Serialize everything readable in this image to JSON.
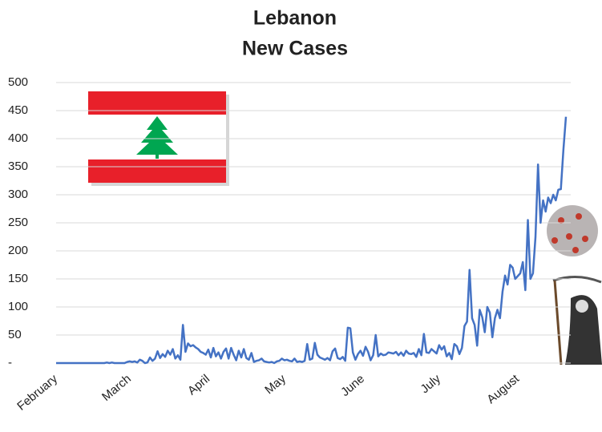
{
  "chart_data": {
    "type": "line",
    "title": "Lebanon",
    "subtitle": "New Cases",
    "categories": [
      "February",
      null,
      null,
      null,
      null,
      null,
      null,
      null,
      null,
      null,
      null,
      null,
      null,
      null,
      null,
      null,
      null,
      null,
      null,
      null,
      null,
      null,
      null,
      null,
      null,
      null,
      null,
      null,
      null,
      "March",
      null,
      null,
      null,
      null,
      null,
      null,
      null,
      null,
      null,
      null,
      null,
      null,
      null,
      null,
      null,
      null,
      null,
      null,
      null,
      null,
      null,
      null,
      null,
      null,
      null,
      null,
      null,
      null,
      null,
      null,
      "April",
      null,
      null,
      null,
      null,
      null,
      null,
      null,
      null,
      null,
      null,
      null,
      null,
      null,
      null,
      null,
      null,
      null,
      null,
      null,
      null,
      null,
      null,
      null,
      null,
      null,
      null,
      null,
      null,
      null,
      "May",
      null,
      null,
      null,
      null,
      null,
      null,
      null,
      null,
      null,
      null,
      null,
      null,
      null,
      null,
      null,
      null,
      null,
      null,
      null,
      null,
      null,
      null,
      null,
      null,
      null,
      null,
      null,
      null,
      null,
      null,
      "June",
      null,
      null,
      null,
      null,
      null,
      null,
      null,
      null,
      null,
      null,
      null,
      null,
      null,
      null,
      null,
      null,
      null,
      null,
      null,
      null,
      null,
      null,
      null,
      null,
      null,
      null,
      null,
      null,
      null,
      "July",
      null,
      null,
      null,
      null,
      null,
      null,
      null,
      null,
      null,
      null,
      null,
      null,
      null,
      null,
      null,
      null,
      null,
      null,
      null,
      null,
      null,
      null,
      null,
      null,
      null,
      null,
      null,
      null,
      null,
      null,
      "August",
      null,
      null,
      null,
      null,
      null,
      null,
      null,
      null,
      null,
      null,
      null,
      null,
      null,
      null,
      null,
      null,
      null,
      null,
      null
    ],
    "series": [
      {
        "name": "New Cases",
        "color": "#4472c4",
        "values": [
          0,
          0,
          0,
          0,
          0,
          0,
          0,
          0,
          0,
          0,
          0,
          0,
          0,
          0,
          0,
          0,
          0,
          0,
          0,
          0,
          1,
          0,
          1,
          0,
          0,
          0,
          0,
          0,
          2,
          3,
          2,
          3,
          1,
          6,
          4,
          0,
          1,
          10,
          4,
          8,
          21,
          9,
          16,
          11,
          22,
          15,
          25,
          8,
          14,
          6,
          68,
          20,
          35,
          30,
          32,
          28,
          25,
          20,
          18,
          15,
          24,
          10,
          27,
          12,
          19,
          8,
          20,
          26,
          8,
          27,
          15,
          5,
          22,
          10,
          25,
          9,
          6,
          18,
          2,
          4,
          5,
          8,
          3,
          2,
          1,
          2,
          0,
          3,
          4,
          8,
          5,
          6,
          4,
          3,
          8,
          2,
          3,
          2,
          4,
          34,
          6,
          8,
          36,
          15,
          10,
          8,
          6,
          9,
          5,
          21,
          26,
          9,
          7,
          11,
          4,
          63,
          62,
          19,
          6,
          16,
          22,
          13,
          29,
          20,
          5,
          14,
          50,
          12,
          17,
          14,
          15,
          19,
          18,
          17,
          20,
          14,
          19,
          13,
          22,
          17,
          16,
          18,
          11,
          25,
          14,
          52,
          19,
          18,
          25,
          21,
          17,
          32,
          24,
          30,
          12,
          18,
          7,
          34,
          30,
          16,
          27,
          66,
          74,
          166,
          80,
          68,
          31,
          95,
          82,
          55,
          100,
          90,
          46,
          80,
          95,
          80,
          127,
          156,
          140,
          175,
          170,
          150,
          155,
          160,
          180,
          130,
          255,
          150,
          160,
          225,
          354,
          250,
          290,
          270,
          295,
          285,
          300,
          290,
          309,
          310,
          380,
          439
        ]
      }
    ],
    "ylim": [
      0,
      500
    ],
    "yticks": [
      {
        "value": 0,
        "label": "-"
      },
      50,
      100,
      150,
      200,
      250,
      300,
      350,
      400,
      450,
      500
    ],
    "grid": true
  }
}
